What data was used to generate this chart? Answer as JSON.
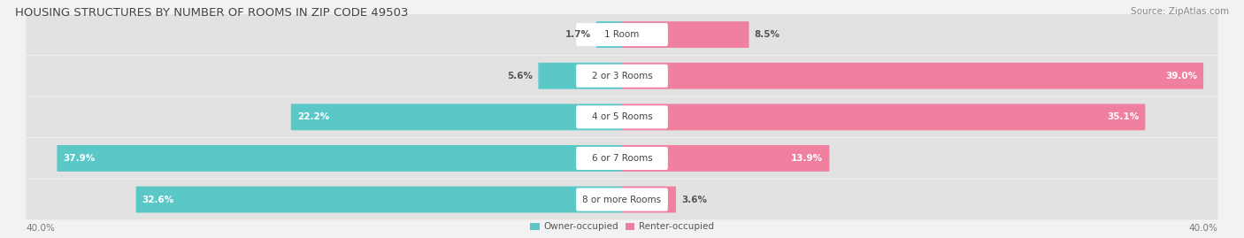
{
  "title": "HOUSING STRUCTURES BY NUMBER OF ROOMS IN ZIP CODE 49503",
  "source": "Source: ZipAtlas.com",
  "categories": [
    "1 Room",
    "2 or 3 Rooms",
    "4 or 5 Rooms",
    "6 or 7 Rooms",
    "8 or more Rooms"
  ],
  "owner_values": [
    1.7,
    5.6,
    22.2,
    37.9,
    32.6
  ],
  "renter_values": [
    8.5,
    39.0,
    35.1,
    13.9,
    3.6
  ],
  "owner_color": "#5BC8C8",
  "renter_color": "#F080A0",
  "axis_max": 40.0,
  "axis_label_left": "40.0%",
  "axis_label_right": "40.0%",
  "background_color": "#f2f2f2",
  "bar_background": "#e2e2e2",
  "title_fontsize": 9.5,
  "source_fontsize": 7.5,
  "label_fontsize": 7.5,
  "category_fontsize": 7.5
}
